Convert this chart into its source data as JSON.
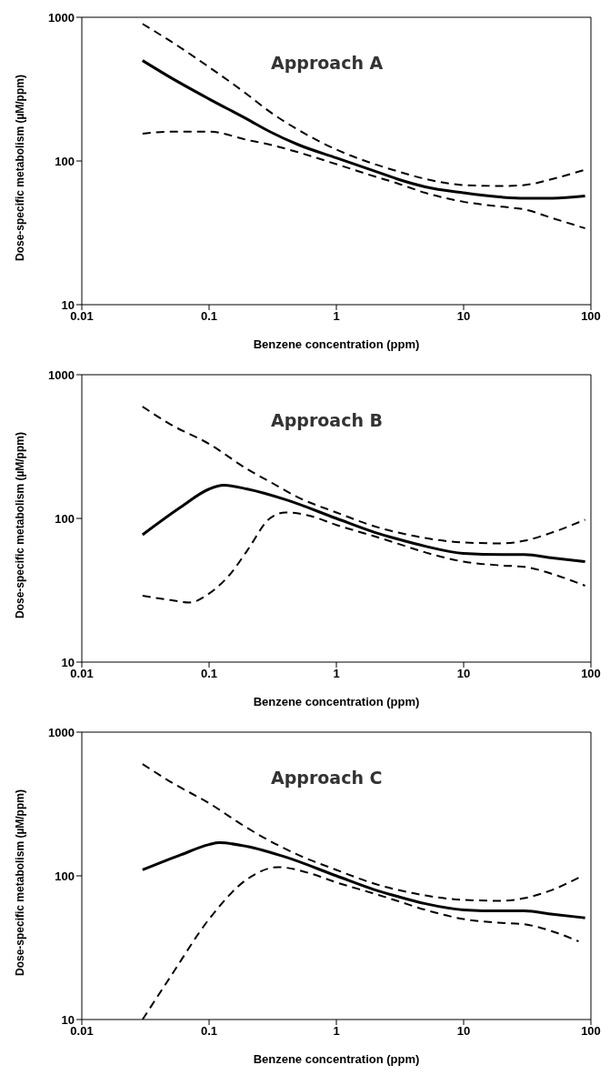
{
  "chart_data": [
    {
      "type": "line",
      "xlabel": "Benzene concentration (ppm)",
      "ylabel": "Dose-specific metabolism (µM/ppm)",
      "annotations": [
        "Approach A"
      ],
      "log": "xy",
      "grid": false,
      "marker": "none",
      "xlim": [
        0.01,
        100
      ],
      "xticks": [
        0.01,
        0.1,
        1,
        10,
        100
      ],
      "ylim": [
        10,
        1000
      ],
      "yticks": [
        10,
        100,
        1000
      ],
      "series": [
        {
          "color": "#000000",
          "line_style": "solid",
          "x": [
            0.03,
            0.05,
            0.1,
            0.2,
            0.3,
            0.5,
            1,
            2,
            3,
            5,
            10,
            20,
            30,
            50,
            90
          ],
          "values": [
            500,
            380,
            270,
            195,
            160,
            130,
            105,
            85,
            75,
            66,
            60,
            56,
            55,
            55,
            57
          ]
        },
        {
          "color": "#000000",
          "line_style": "dashed",
          "x": [
            0.03,
            0.05,
            0.1,
            0.2,
            0.3,
            0.5,
            1,
            2,
            3,
            5,
            10,
            20,
            30,
            50,
            90
          ],
          "values": [
            900,
            680,
            450,
            290,
            220,
            165,
            120,
            95,
            85,
            75,
            68,
            67,
            68,
            75,
            87
          ]
        },
        {
          "color": "#000000",
          "line_style": "dashed",
          "x": [
            0.03,
            0.05,
            0.1,
            0.2,
            0.3,
            0.5,
            1,
            2,
            3,
            5,
            10,
            20,
            30,
            50,
            90
          ],
          "values": [
            155,
            160,
            160,
            140,
            130,
            115,
            95,
            78,
            70,
            60,
            52,
            48,
            46,
            40,
            34
          ]
        }
      ]
    },
    {
      "type": "line",
      "xlabel": "Benzene concentration (ppm)",
      "ylabel": "Dose-specific metabolism (µM/ppm)",
      "annotations": [
        "Approach B"
      ],
      "log": "xy",
      "grid": false,
      "marker": "none",
      "xlim": [
        0.01,
        100
      ],
      "xticks": [
        0.01,
        0.1,
        1,
        10,
        100
      ],
      "ylim": [
        10,
        1000
      ],
      "yticks": [
        10,
        100,
        1000
      ],
      "series": [
        {
          "color": "#000000",
          "line_style": "solid",
          "x": [
            0.03,
            0.06,
            0.1,
            0.13,
            0.2,
            0.4,
            1,
            2,
            3,
            5,
            10,
            20,
            30,
            50,
            90
          ],
          "values": [
            77,
            120,
            160,
            170,
            160,
            135,
            100,
            80,
            72,
            64,
            57,
            56,
            56,
            53,
            50
          ]
        },
        {
          "color": "#000000",
          "line_style": "dashed",
          "x": [
            0.03,
            0.05,
            0.1,
            0.2,
            0.3,
            0.5,
            1,
            2,
            3,
            5,
            10,
            20,
            30,
            50,
            90
          ],
          "values": [
            600,
            450,
            330,
            220,
            180,
            140,
            110,
            88,
            80,
            73,
            68,
            67,
            70,
            80,
            98
          ]
        },
        {
          "color": "#000000",
          "line_style": "dashed",
          "x": [
            0.03,
            0.05,
            0.07,
            0.1,
            0.15,
            0.2,
            0.3,
            0.4,
            0.6,
            1,
            2,
            3,
            5,
            10,
            20,
            30,
            50,
            90
          ],
          "values": [
            29,
            27,
            26,
            30,
            42,
            60,
            100,
            110,
            105,
            90,
            75,
            67,
            58,
            50,
            47,
            46,
            41,
            34
          ]
        }
      ]
    },
    {
      "type": "line",
      "xlabel": "Benzene concentration (ppm)",
      "ylabel": "Dose-specific metabolism (µM/ppm)",
      "annotations": [
        "Approach C"
      ],
      "log": "xy",
      "grid": false,
      "marker": "none",
      "xlim": [
        0.01,
        100
      ],
      "xticks": [
        0.01,
        0.1,
        1,
        10,
        100
      ],
      "ylim": [
        10,
        1000
      ],
      "yticks": [
        10,
        100,
        1000
      ],
      "series": [
        {
          "color": "#000000",
          "line_style": "solid",
          "x": [
            0.03,
            0.06,
            0.1,
            0.12,
            0.2,
            0.4,
            1,
            2,
            3,
            5,
            10,
            20,
            30,
            50,
            90
          ],
          "values": [
            110,
            140,
            165,
            170,
            160,
            135,
            100,
            80,
            72,
            64,
            58,
            57,
            57,
            54,
            51
          ]
        },
        {
          "color": "#000000",
          "line_style": "dashed",
          "x": [
            0.03,
            0.05,
            0.1,
            0.2,
            0.3,
            0.5,
            1,
            2,
            3,
            5,
            10,
            20,
            30,
            50,
            80
          ],
          "values": [
            600,
            450,
            320,
            215,
            175,
            140,
            110,
            88,
            80,
            73,
            68,
            67,
            70,
            80,
            97
          ]
        },
        {
          "color": "#000000",
          "line_style": "dashed",
          "x": [
            0.03,
            0.05,
            0.1,
            0.2,
            0.35,
            0.6,
            1,
            2,
            3,
            5,
            10,
            20,
            30,
            50,
            80
          ],
          "values": [
            10,
            20,
            50,
            95,
            115,
            105,
            90,
            75,
            67,
            58,
            50,
            47,
            46,
            41,
            35
          ]
        }
      ]
    }
  ]
}
